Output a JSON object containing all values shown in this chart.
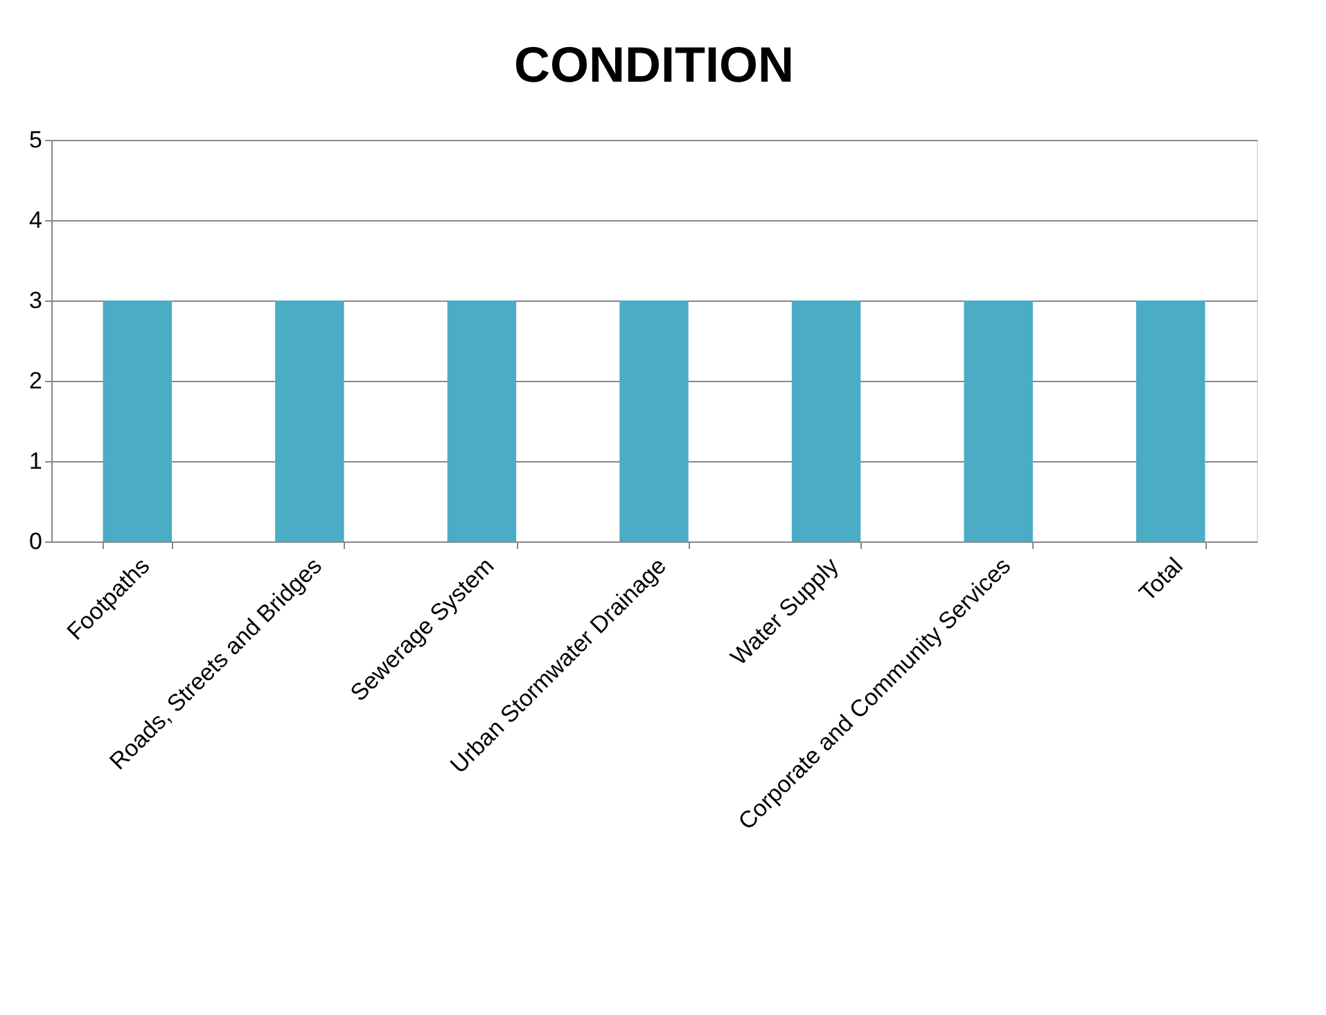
{
  "chart_data": {
    "type": "bar",
    "title": "CONDITION",
    "categories": [
      "Footpaths",
      "Roads, Streets and Bridges",
      "Sewerage System",
      "Urban Stormwater Drainage",
      "Water Supply",
      "Corporate and Community Services",
      "Total"
    ],
    "values": [
      3,
      3,
      3,
      3,
      3,
      3,
      3
    ],
    "color": "#4bacc6",
    "ylim": [
      0,
      5
    ],
    "yticks": [
      0,
      1,
      2,
      3,
      4,
      5
    ],
    "grid": "y"
  }
}
